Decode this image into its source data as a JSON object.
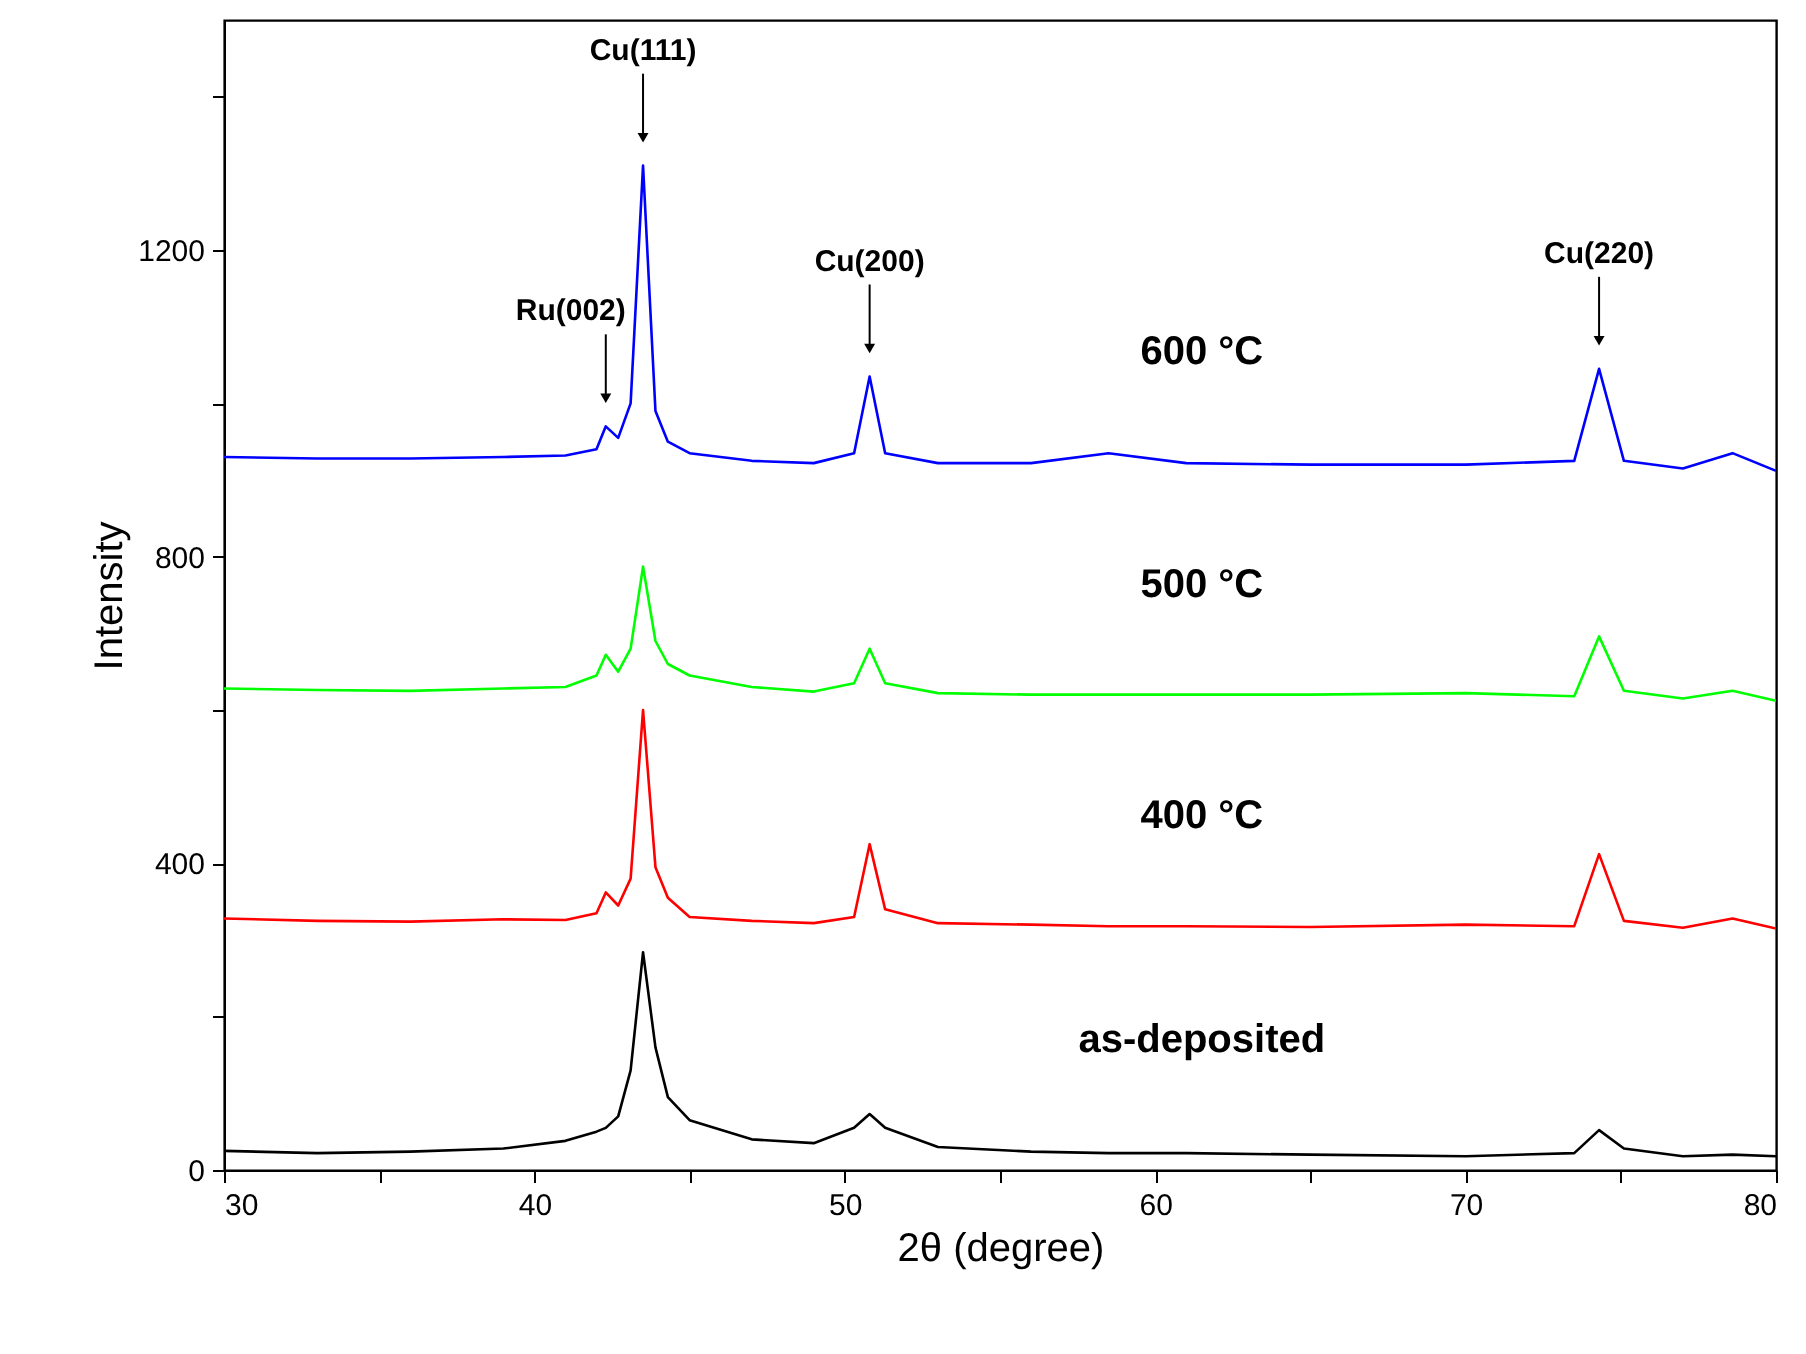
{
  "chart_data": {
    "type": "line",
    "xlabel": "2θ (degree)",
    "ylabel": "Intensity",
    "x": [
      30,
      33,
      36,
      39,
      41,
      42,
      42.3,
      42.7,
      43.1,
      43.5,
      43.9,
      44.3,
      45,
      47,
      49,
      50.3,
      50.8,
      51.3,
      53,
      56,
      58.5,
      61,
      65,
      70,
      73.5,
      74.3,
      75.1,
      77,
      78.6,
      80
    ],
    "series": [
      {
        "name": "as-deposited",
        "color": "#000000",
        "values": [
          25,
          22,
          24,
          28,
          38,
          50,
          55,
          70,
          130,
          284,
          160,
          95,
          65,
          40,
          35,
          55,
          73,
          55,
          30,
          24,
          22,
          22,
          20,
          18,
          22,
          52,
          28,
          18,
          20,
          18
        ]
      },
      {
        "name": "400 °C",
        "color": "#ff0000",
        "values": [
          328,
          325,
          324,
          327,
          326,
          335,
          362,
          345,
          380,
          600,
          395,
          355,
          330,
          325,
          322,
          330,
          425,
          340,
          322,
          320,
          318,
          318,
          317,
          320,
          318,
          412,
          325,
          316,
          328,
          315
        ]
      },
      {
        "name": "500 °C",
        "color": "#00ff00",
        "values": [
          628,
          626,
          625,
          628,
          630,
          645,
          672,
          650,
          680,
          787,
          690,
          660,
          645,
          630,
          624,
          635,
          680,
          635,
          622,
          620,
          620,
          620,
          620,
          622,
          618,
          696,
          625,
          615,
          625,
          612
        ]
      },
      {
        "name": "600 °C",
        "color": "#0000ff",
        "values": [
          930,
          928,
          928,
          930,
          932,
          940,
          970,
          955,
          1000,
          1310,
          990,
          950,
          935,
          925,
          922,
          935,
          1035,
          935,
          922,
          922,
          935,
          922,
          920,
          920,
          925,
          1045,
          925,
          915,
          935,
          912
        ]
      }
    ],
    "xlim": [
      30,
      80
    ],
    "xticks": [
      30,
      {
        "value": 35,
        "label": null
      },
      40,
      {
        "value": 45,
        "label": null
      },
      50,
      {
        "value": 55,
        "label": null
      },
      60,
      {
        "value": 65,
        "label": null
      },
      70,
      {
        "value": 75,
        "label": null
      },
      80
    ],
    "ylim": [
      0,
      1500
    ],
    "yticks": [
      0,
      {
        "value": 200,
        "label": null
      },
      400,
      {
        "value": 600,
        "label": null
      },
      800,
      {
        "value": 1000,
        "label": null
      },
      1200,
      {
        "value": 1400,
        "label": null
      }
    ],
    "annotations": [
      "Ru(002)",
      "Cu(111)",
      "Cu(200)",
      "Cu(220)"
    ],
    "grid": false,
    "marker": "none",
    "line_style": "solid"
  }
}
